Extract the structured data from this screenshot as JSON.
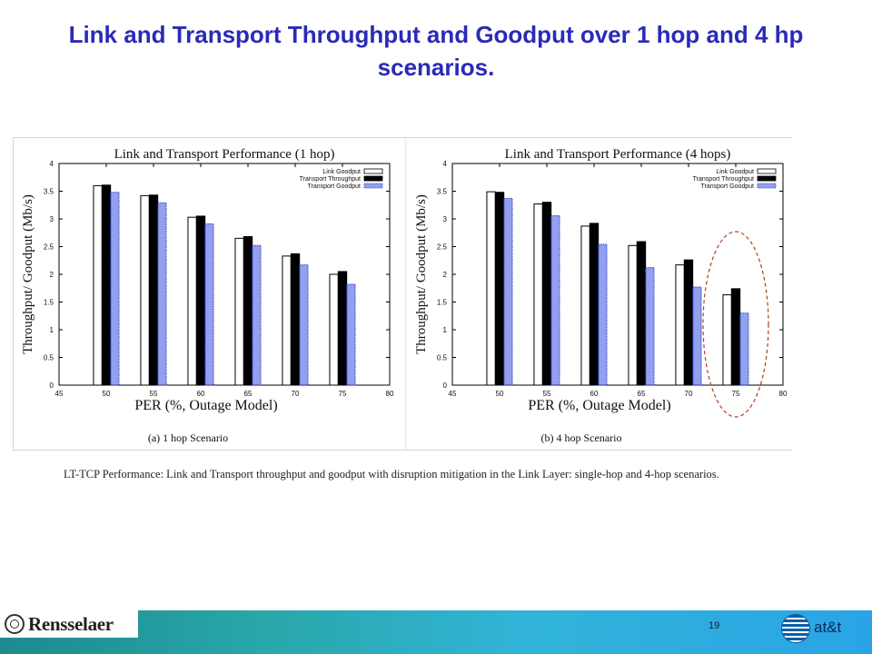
{
  "slide": {
    "title": "Link and Transport Throughput and Goodput over 1 hop and 4 hp scenarios.",
    "caption": "LT-TCP Performance: Link and Transport throughput and goodput with disruption mitigation in the Link Layer: single-hop and 4-hop scenarios.",
    "page_number": "19",
    "logo_text": "Rensselaer",
    "att_text": "at&t"
  },
  "colors": {
    "title": "#2a2ab8",
    "link_goodput": "#ffffff",
    "transport_throughput": "#000000",
    "transport_goodput": "#3b52e0",
    "highlight_ellipse": "#b0401e"
  },
  "chart_data": [
    {
      "type": "bar",
      "title": "Link and Transport Performance (1 hop)",
      "xlabel": "PER (%, Outage Model)",
      "ylabel": "Throughput/ Goodput (Mb/s)",
      "sublabel": "(a) 1 hop Scenario",
      "x": [
        50,
        55,
        60,
        65,
        70,
        75
      ],
      "xlim": [
        45,
        80
      ],
      "xticks": [
        "45",
        "50",
        "55",
        "60",
        "65",
        "70",
        "75",
        "80"
      ],
      "ylim": [
        0,
        4
      ],
      "yticks": [
        "0",
        "0.5",
        "1",
        "1.5",
        "2",
        "2.5",
        "3",
        "3.5",
        "4"
      ],
      "legend_position": "top-right",
      "series": [
        {
          "name": "Link Goodput",
          "values": [
            3.6,
            3.42,
            3.03,
            2.65,
            2.33,
            2.0
          ]
        },
        {
          "name": "Transport Throughput",
          "values": [
            3.61,
            3.43,
            3.05,
            2.68,
            2.37,
            2.05
          ]
        },
        {
          "name": "Transport Goodput",
          "values": [
            3.48,
            3.29,
            2.91,
            2.52,
            2.17,
            1.82
          ]
        }
      ]
    },
    {
      "type": "bar",
      "title": "Link and Transport Performance (4 hops)",
      "xlabel": "PER (%, Outage Model)",
      "ylabel": "Throughput/ Goodput (Mb/s)",
      "sublabel": "(b) 4 hop Scenario",
      "x": [
        50,
        55,
        60,
        65,
        70,
        75
      ],
      "xlim": [
        45,
        80
      ],
      "xticks": [
        "45",
        "50",
        "55",
        "60",
        "65",
        "70",
        "75",
        "80"
      ],
      "ylim": [
        0,
        4
      ],
      "yticks": [
        "0",
        "0.5",
        "1",
        "1.5",
        "2",
        "2.5",
        "3",
        "3.5",
        "4"
      ],
      "legend_position": "top-right",
      "highlight_x": 75,
      "series": [
        {
          "name": "Link Goodput",
          "values": [
            3.49,
            3.27,
            2.87,
            2.52,
            2.17,
            1.63
          ]
        },
        {
          "name": "Transport Throughput",
          "values": [
            3.48,
            3.3,
            2.92,
            2.59,
            2.26,
            1.74
          ]
        },
        {
          "name": "Transport Goodput",
          "values": [
            3.37,
            3.06,
            2.54,
            2.12,
            1.77,
            1.3
          ]
        }
      ]
    }
  ]
}
